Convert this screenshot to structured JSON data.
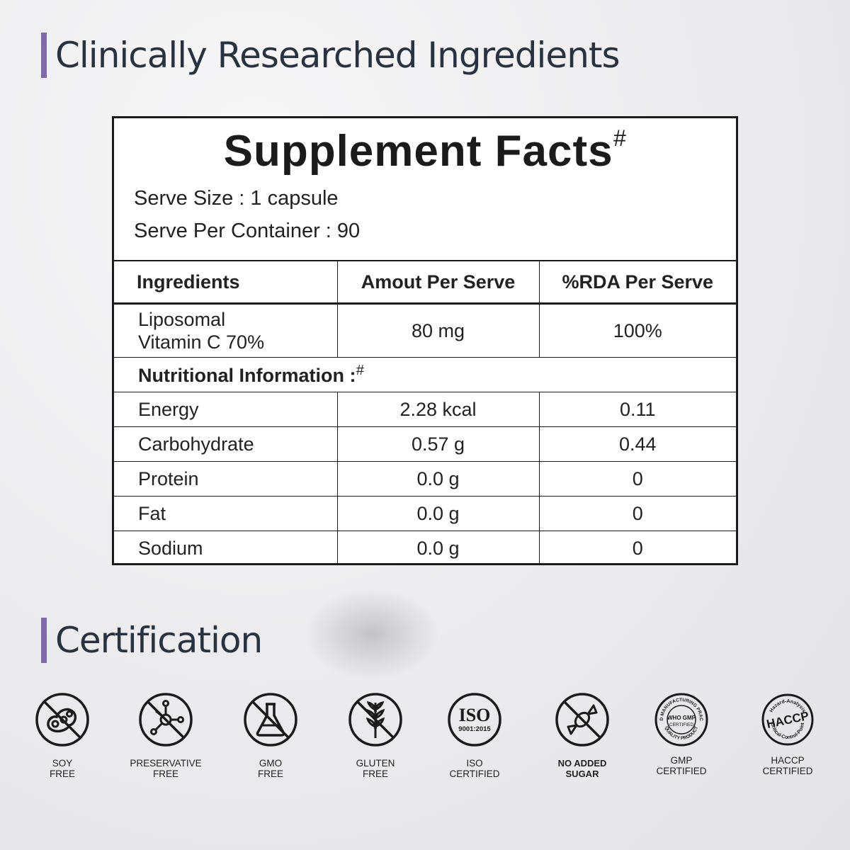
{
  "headings": {
    "ingredients": "Clinically Researched Ingredients",
    "certification": "Certification"
  },
  "facts": {
    "title": "Supplement Facts",
    "title_mark": "#",
    "serve_size": "Serve Size : 1 capsule",
    "serve_per_container": "Serve Per Container : 90",
    "columns": [
      "Ingredients",
      "Amout Per Serve",
      "%RDA Per Serve"
    ],
    "ingredient": {
      "name_line1": "Liposomal",
      "name_line2": "Vitamin C 70%",
      "amount": "80 mg",
      "rda": "100%"
    },
    "nutrition_heading": "Nutritional Information :",
    "nutrition_mark": "#",
    "nutrition": [
      {
        "name": "Energy",
        "amount": "2.28 kcal",
        "rda": "0.11"
      },
      {
        "name": "Carbohydrate",
        "amount": "0.57 g",
        "rda": "0.44"
      },
      {
        "name": "Protein",
        "amount": "0.0 g",
        "rda": "0"
      },
      {
        "name": "Fat",
        "amount": "0.0 g",
        "rda": "0"
      },
      {
        "name": "Sodium",
        "amount": "0.0 g",
        "rda": "0"
      }
    ]
  },
  "certifications": [
    {
      "line1": "SOY",
      "line2": "FREE",
      "icon": "soy-free-icon"
    },
    {
      "line1": "PRESERVATIVE",
      "line2": "FREE",
      "icon": "preservative-free-icon"
    },
    {
      "line1": "GMO",
      "line2": "FREE",
      "icon": "gmo-free-icon"
    },
    {
      "line1": "GLUTEN",
      "line2": "FREE",
      "icon": "gluten-free-icon"
    },
    {
      "line1": "ISO",
      "line2": "CERTIFIED",
      "icon": "iso-icon"
    },
    {
      "line1": "NO ADDED",
      "line2": "SUGAR",
      "icon": "no-sugar-icon"
    },
    {
      "line1": "GMP",
      "line2": "CERTIFIED",
      "icon": "gmp-icon"
    },
    {
      "line1": "HACCP",
      "line2": "CERTIFIED",
      "icon": "haccp-icon"
    }
  ],
  "badge_text": {
    "iso_main": "ISO",
    "iso_sub": "9001:2015",
    "gmp_main": "WHO GMP",
    "gmp_sub": "CERTIFIED",
    "gmp_ring_top": "GOOD MANUFACTURING PRACTICE",
    "gmp_ring_bottom": "QUALITY PRODUCT",
    "haccp_main": "HACCP",
    "haccp_ring_top": "Hazard-Analysis",
    "haccp_ring_bottom": "Critical-Control-Point"
  },
  "colors": {
    "accent": "#7d6aa8",
    "heading": "#2a3240"
  }
}
